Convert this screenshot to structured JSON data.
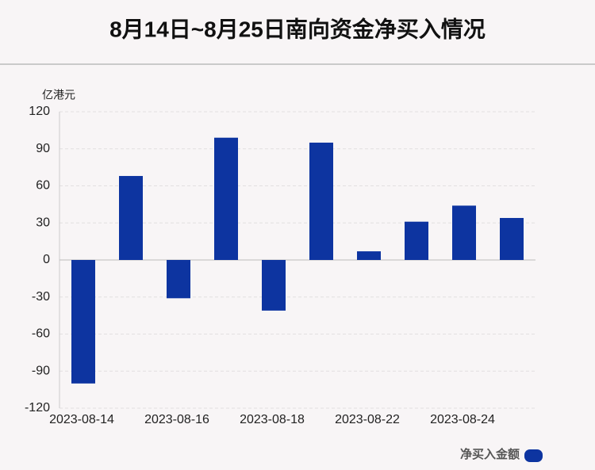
{
  "chart_data": {
    "type": "bar",
    "title": "8月14日~8月25日南向资金净买入情况",
    "y_label": "亿港元",
    "categories": [
      "2023-08-14",
      null,
      "2023-08-16",
      null,
      "2023-08-18",
      null,
      "2023-08-22",
      null,
      "2023-08-24",
      null
    ],
    "series": [
      {
        "name": "净买入金额",
        "color": "#0d34a0",
        "values": [
          -100,
          68,
          -31,
          99,
          -41,
          95,
          7,
          31,
          44,
          34
        ]
      }
    ],
    "ylim": [
      -120,
      120
    ],
    "yticks": [
      -120,
      -90,
      -60,
      -30,
      0,
      30,
      60,
      90,
      120
    ],
    "grid": true,
    "legend": "bottom-right"
  }
}
